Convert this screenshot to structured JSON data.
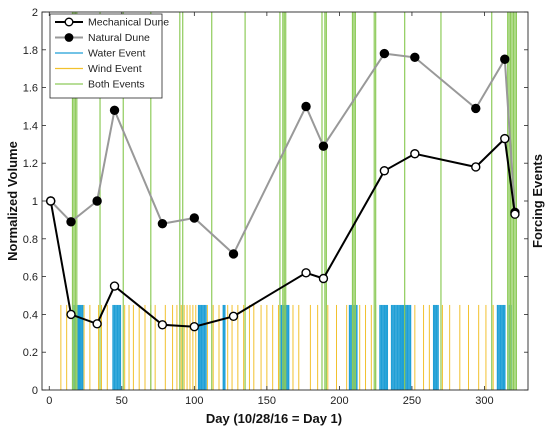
{
  "chart_data": {
    "type": "line",
    "xlabel": "Day (10/28/16 = Day 1)",
    "ylabel": "Normalized Volume",
    "ylabel_right": "Forcing Events",
    "xlim": [
      -5,
      330
    ],
    "ylim": [
      0,
      2
    ],
    "x_ticks": [
      0,
      50,
      100,
      150,
      200,
      250,
      300
    ],
    "y_ticks": [
      0,
      0.2,
      0.4,
      0.6,
      0.8,
      1,
      1.2,
      1.4,
      1.6,
      1.8,
      2
    ],
    "x_tick_labels": [
      "0",
      "50",
      "100",
      "150",
      "200",
      "250",
      "300"
    ],
    "y_tick_labels": [
      "0",
      "0.2",
      "0.4",
      "0.6",
      "0.8",
      "1",
      "1.2",
      "1.4",
      "1.6",
      "1.8",
      "2"
    ],
    "grid": false,
    "legend_position": "top-left",
    "legend": [
      {
        "label": "Mechanical Dune",
        "kind": "line-open-marker",
        "color": "#000000"
      },
      {
        "label": "Natural Dune",
        "kind": "line-filled-marker",
        "color": "#999999"
      },
      {
        "label": "Water Event",
        "kind": "line",
        "color": "#1f9fd6"
      },
      {
        "label": "Wind Event",
        "kind": "line",
        "color": "#f2c12e"
      },
      {
        "label": "Both Events",
        "kind": "line",
        "color": "#8ecb5a"
      }
    ],
    "series": [
      {
        "name": "Mechanical Dune",
        "color": "#000000",
        "marker": "open-circle",
        "x": [
          1,
          15,
          33,
          45,
          78,
          100,
          127,
          177,
          189,
          231,
          252,
          294,
          314,
          321
        ],
        "y": [
          1.0,
          0.4,
          0.35,
          0.55,
          0.345,
          0.335,
          0.39,
          0.62,
          0.59,
          1.16,
          1.25,
          1.18,
          1.33,
          0.93
        ]
      },
      {
        "name": "Natural Dune",
        "color": "#999999",
        "marker": "filled-circle",
        "x": [
          1,
          15,
          33,
          45,
          78,
          100,
          127,
          177,
          189,
          231,
          252,
          294,
          314,
          321
        ],
        "y": [
          1.0,
          0.89,
          1.0,
          1.48,
          0.88,
          0.91,
          0.72,
          1.5,
          1.29,
          1.78,
          1.76,
          1.49,
          1.75,
          0.94
        ]
      }
    ],
    "events": {
      "water_height": 0.45,
      "wind_height": 0.45,
      "both_height": 2.0,
      "water": [
        17,
        18,
        20,
        21,
        22,
        23,
        44,
        45,
        46,
        47,
        48,
        49,
        103,
        104,
        105,
        106,
        107,
        108,
        120,
        121,
        160,
        161,
        162,
        163,
        164,
        165,
        207,
        208,
        209,
        210,
        211,
        212,
        228,
        229,
        230,
        231,
        232,
        233,
        236,
        237,
        238,
        239,
        240,
        241,
        242,
        243,
        244,
        245,
        246,
        247,
        248,
        249,
        265,
        266,
        267,
        268,
        309,
        310,
        311,
        312,
        313,
        314,
        317,
        318
      ],
      "wind": [
        8,
        12,
        19,
        24,
        28,
        34,
        36,
        40,
        52,
        55,
        58,
        62,
        66,
        70,
        73,
        80,
        85,
        88,
        91,
        93,
        95,
        97,
        99,
        101,
        109,
        113,
        117,
        123,
        126,
        130,
        134,
        138,
        141,
        146,
        150,
        154,
        158,
        168,
        172,
        180,
        185,
        192,
        198,
        205,
        214,
        218,
        222,
        225,
        252,
        258,
        262,
        271,
        276,
        283,
        289,
        296,
        301,
        306
      ],
      "both": [
        16,
        17,
        18,
        19,
        35,
        51,
        70,
        90,
        92,
        112,
        135,
        159,
        161,
        162,
        163,
        188,
        190,
        191,
        209,
        210,
        211,
        224,
        225,
        245,
        270,
        305,
        316,
        317,
        318,
        319,
        320,
        321,
        322
      ]
    }
  }
}
